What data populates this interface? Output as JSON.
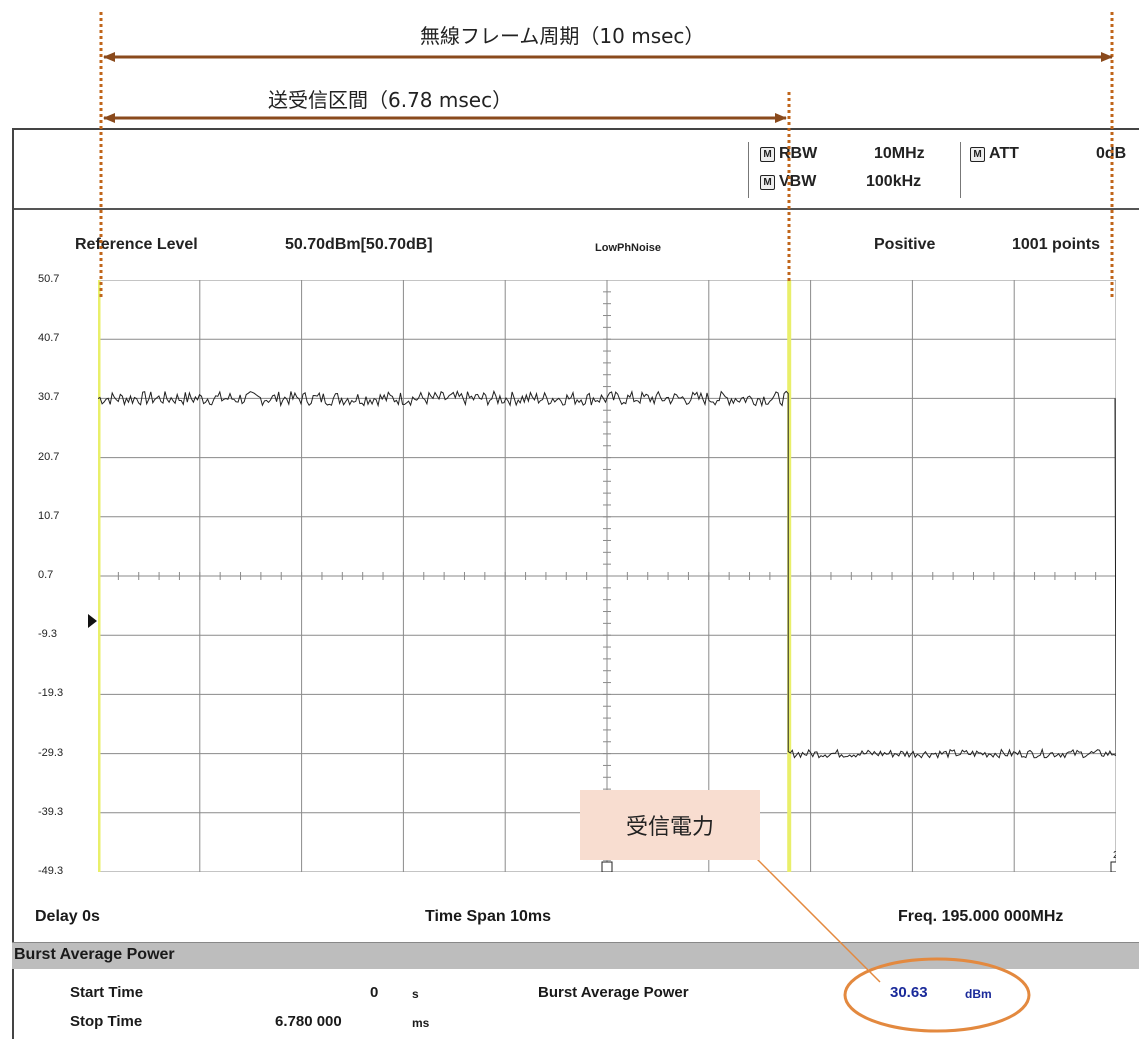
{
  "annotations": {
    "frame_period_label": "無線フレーム周期（10 msec）",
    "txrx_interval_label": "送受信区間（6.78 msec）",
    "rx_power_callout": "受信電力",
    "arrow_color": "#8a4a1c",
    "marker_color": "#c0651a",
    "circle_color": "#e3893f"
  },
  "settings": {
    "rbw_label": "RBW",
    "rbw_value": "10MHz",
    "vbw_label": "VBW",
    "vbw_value": "100kHz",
    "att_label": "ATT",
    "att_value": "0dB",
    "mode_icon": "M"
  },
  "header": {
    "ref_level_label": "Reference Level",
    "ref_level_value": "50.70dBm[50.70dB]",
    "phase_noise": "LowPhNoise",
    "detector": "Positive",
    "points": "1001 points"
  },
  "chart_data": {
    "type": "line",
    "y_ticks": [
      "50.7",
      "40.7",
      "30.7",
      "20.7",
      "10.7",
      "0.7",
      "-9.3",
      "-19.3",
      "-29.3",
      "-39.3",
      "-49.3"
    ],
    "ylim": [
      -49.3,
      50.7
    ],
    "xlim": [
      0,
      10
    ],
    "x_unit": "ms",
    "series": [
      {
        "segments": [
          {
            "x": [
              0,
              6.78
            ],
            "level": 30.7
          },
          {
            "x": [
              6.78,
              10
            ],
            "level": -29.3
          }
        ]
      }
    ],
    "markers": [
      "3",
      "2"
    ],
    "grid": true
  },
  "footer": {
    "delay": "Delay 0s",
    "time_span": "Time Span 10ms",
    "freq": "Freq. 195.000 000MHz"
  },
  "results": {
    "section_title": "Burst Average Power",
    "start_label": "Start Time",
    "start_value": "0",
    "start_unit": "s",
    "stop_label": "Stop Time",
    "stop_value": "6.780 000",
    "stop_unit": "ms",
    "bap_label": "Burst Average Power",
    "bap_value": "30.63",
    "bap_unit": "dBm"
  }
}
